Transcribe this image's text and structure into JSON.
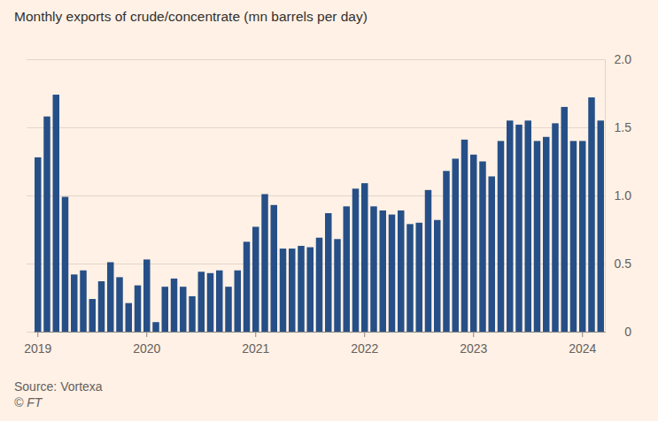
{
  "chart_data": {
    "type": "bar",
    "title": "Monthly exports of crude/concentrate (mn barrels per day)",
    "source": "Source: Vortexa",
    "credit": "© FT",
    "categories": [
      "2019",
      null,
      null,
      null,
      null,
      null,
      null,
      null,
      null,
      null,
      null,
      null,
      "2020",
      null,
      null,
      null,
      null,
      null,
      null,
      null,
      null,
      null,
      null,
      null,
      "2021",
      null,
      null,
      null,
      null,
      null,
      null,
      null,
      null,
      null,
      null,
      null,
      "2022",
      null,
      null,
      null,
      null,
      null,
      null,
      null,
      null,
      null,
      null,
      null,
      "2023",
      null,
      null,
      null,
      null,
      null,
      null,
      null,
      null,
      null,
      null,
      null,
      "2024",
      null,
      null
    ],
    "values": [
      1.28,
      1.58,
      1.74,
      0.99,
      0.42,
      0.45,
      0.24,
      0.37,
      0.51,
      0.4,
      0.21,
      0.34,
      0.53,
      0.07,
      0.33,
      0.39,
      0.33,
      0.26,
      0.44,
      0.43,
      0.45,
      0.33,
      0.45,
      0.66,
      0.77,
      1.01,
      0.93,
      0.61,
      0.61,
      0.63,
      0.62,
      0.69,
      0.87,
      0.68,
      0.92,
      1.05,
      1.09,
      0.92,
      0.89,
      0.86,
      0.89,
      0.79,
      0.8,
      1.04,
      0.82,
      1.18,
      1.27,
      1.41,
      1.3,
      1.25,
      1.14,
      1.4,
      1.55,
      1.52,
      1.55,
      1.4,
      1.43,
      1.53,
      1.65,
      1.4,
      1.4,
      1.72,
      1.55
    ],
    "color": "#264f87",
    "ylim": [
      0,
      2
    ],
    "yticks": [
      0,
      0.5,
      {
        "value": 1,
        "label": "1.0"
      },
      1.5,
      {
        "value": 2,
        "label": "2.0"
      }
    ],
    "grid": true
  }
}
